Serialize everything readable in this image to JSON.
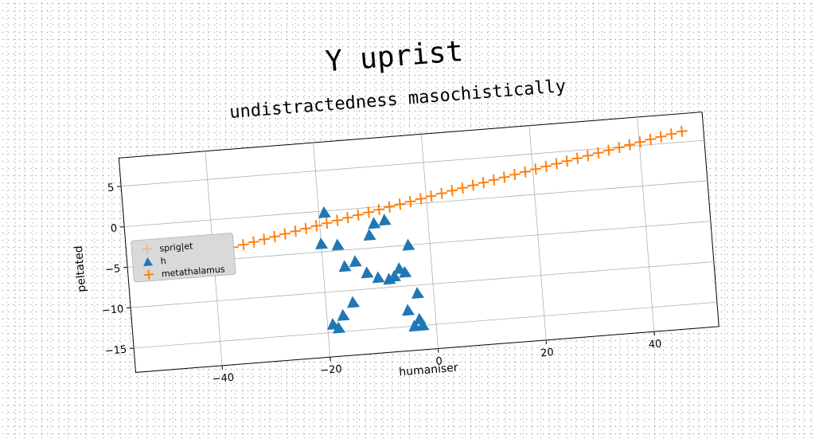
{
  "chart_data": {
    "type": "scatter",
    "title": "Y uprist",
    "subtitle": "undistractedness masochistically",
    "xlabel": "humaniser",
    "ylabel": "peltated",
    "xlim": [
      -56,
      52
    ],
    "ylim": [
      -18,
      8.5
    ],
    "xticks": [
      -40,
      -20,
      0,
      20,
      40
    ],
    "yticks": [
      5,
      0,
      -5,
      -10,
      -15
    ],
    "grid": true,
    "legend": {
      "placement": "center-left"
    },
    "series": [
      {
        "name": "sprig|et",
        "marker": "plus",
        "color": "#f5b98a",
        "points": []
      },
      {
        "name": "h",
        "marker": "triangle",
        "color": "#1f77b4",
        "points": [
          [
            -19,
            -0.2
          ],
          [
            -20,
            -4.0
          ],
          [
            -17,
            -4.3
          ],
          [
            -16,
            -7.0
          ],
          [
            -14,
            -6.5
          ],
          [
            -12,
            -8.0
          ],
          [
            -11,
            -3.4
          ],
          [
            -10,
            -2.0
          ],
          [
            -8,
            -1.7
          ],
          [
            -10,
            -8.7
          ],
          [
            -8,
            -9.0
          ],
          [
            -7,
            -8.7
          ],
          [
            -6,
            -7.8
          ],
          [
            -5,
            -8.3
          ],
          [
            -4,
            -5.0
          ],
          [
            -3,
            -11.0
          ],
          [
            -5,
            -13.0
          ],
          [
            -3,
            -14.2
          ],
          [
            -4,
            -15.0
          ],
          [
            -2.5,
            -15.0
          ],
          [
            -15,
            -11.5
          ],
          [
            -17,
            -13.0
          ],
          [
            -18,
            -14.5
          ],
          [
            -19,
            -14.0
          ]
        ]
      },
      {
        "name": "metathalamus",
        "marker": "plus",
        "color": "#ff7f0e",
        "line_y_at_xmin": -5.9,
        "line_y_at_xmax": 6.8,
        "n": 52
      }
    ]
  }
}
